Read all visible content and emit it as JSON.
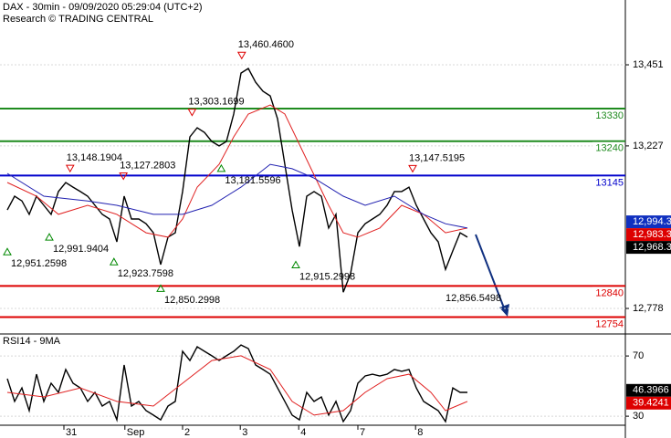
{
  "chart_data": [
    {
      "type": "line",
      "title": "DAX - 30min - 09/09/2020 05:29:04 (UTC+2)",
      "subtitle": "Research © TRADING CENTRAL",
      "xlim": [
        0,
        85.625
      ],
      "ylim": [
        12710,
        13630
      ],
      "yticks": [
        {
          "value": 12778,
          "label": "12,778"
        },
        {
          "value": 13227,
          "label": "13,227"
        },
        {
          "value": 13451,
          "label": "13,451"
        }
      ],
      "grid": true,
      "series": [
        {
          "color": "#000000",
          "x": [
            1,
            2,
            3,
            4,
            5,
            6,
            7,
            8,
            9,
            10,
            11,
            12,
            13,
            14,
            15,
            16,
            17,
            18,
            19,
            20,
            21,
            22,
            23,
            24,
            25,
            26,
            27,
            28,
            29,
            30,
            31,
            32,
            33,
            34,
            35,
            36,
            37,
            38,
            39,
            40,
            41,
            42,
            43,
            44,
            45,
            46,
            47,
            48,
            49,
            50,
            51,
            52,
            53,
            54,
            55,
            56,
            57,
            58,
            59,
            60,
            61,
            62,
            63,
            64
          ],
          "values": [
            13050,
            13088,
            13075,
            13038,
            13088,
            13063,
            13038,
            13101,
            13126,
            13113,
            13101,
            13088,
            13063,
            13038,
            13025,
            12962,
            13088,
            13025,
            13025,
            13012,
            12987,
            12899,
            12975,
            12987,
            13101,
            13252,
            13277,
            13264,
            13239,
            13227,
            13239,
            13315,
            13428,
            13441,
            13403,
            13378,
            13365,
            13302,
            13176,
            13050,
            12949,
            13088,
            13101,
            13088,
            13000,
            13038,
            12823,
            12874,
            12987,
            13012,
            13025,
            13038,
            13063,
            13101,
            13101,
            13113,
            13063,
            13025,
            12987,
            12962,
            12886,
            12937,
            12987,
            12975
          ]
        },
        {
          "color": "#e02020",
          "x": [
            1,
            5,
            8,
            12,
            16,
            20,
            23,
            25,
            27,
            30,
            32,
            34,
            37,
            39,
            42,
            45,
            47,
            49,
            52,
            55,
            58,
            61,
            64
          ],
          "values": [
            13126,
            13088,
            13038,
            13063,
            13038,
            12987,
            12975,
            13025,
            13113,
            13176,
            13252,
            13315,
            13340,
            13315,
            13189,
            13063,
            12987,
            12975,
            13000,
            13063,
            13038,
            12987,
            13000
          ]
        },
        {
          "color": "#2020b0",
          "x": [
            1,
            6,
            12,
            16,
            21,
            25,
            29,
            33,
            37,
            40,
            43,
            47,
            50,
            54,
            58,
            61,
            64
          ],
          "values": [
            13151,
            13088,
            13075,
            13063,
            13038,
            13038,
            13063,
            13113,
            13176,
            13164,
            13138,
            13088,
            13063,
            13088,
            13038,
            13012,
            13000
          ]
        }
      ],
      "levels": [
        {
          "value": 13330,
          "color": "#1f8b1f"
        },
        {
          "value": 13240,
          "color": "#1f8b1f"
        },
        {
          "value": 13145,
          "color": "#0000cc"
        },
        {
          "value": 12840,
          "color": "#dd0000"
        },
        {
          "value": 12754,
          "color": "#dd0000"
        }
      ],
      "pivots": [
        {
          "x": 9.6,
          "value": 13148.1904,
          "label": "13,148.1904",
          "kind": "high"
        },
        {
          "x": 16.9,
          "value": 13127.2803,
          "label": "13,127.2803",
          "kind": "high"
        },
        {
          "x": 26.3,
          "value": 13303.1699,
          "label": "13,303.1699",
          "kind": "high"
        },
        {
          "x": 33.1,
          "value": 13460.46,
          "label": "13,460.4600",
          "kind": "high"
        },
        {
          "x": 56.5,
          "value": 13147.5195,
          "label": "13,147.5195",
          "kind": "high"
        },
        {
          "x": 1,
          "value": 12951.2598,
          "label": "12,951.2598",
          "kind": "low"
        },
        {
          "x": 6.75,
          "value": 12991.9404,
          "label": "12,991.9404",
          "kind": "low"
        },
        {
          "x": 15.6,
          "value": 12923.7598,
          "label": "12,923.7598",
          "kind": "low"
        },
        {
          "x": 22,
          "value": 12850.2998,
          "label": "12,850.2998",
          "kind": "low"
        },
        {
          "x": 30.3,
          "value": 13181.5596,
          "label": "13,181.5596",
          "kind": "low"
        },
        {
          "x": 40.5,
          "value": 12915.2998,
          "label": "12,915.2998",
          "kind": "low"
        }
      ],
      "target": {
        "x": 61,
        "value": 12856.5498,
        "label": "12,856.5498"
      },
      "tags": [
        {
          "value": 12994.3,
          "label": "12,994.3",
          "color": "#1030c0"
        },
        {
          "value": 12983.3,
          "label": "12,983.3",
          "color": "#dd0000"
        },
        {
          "value": 12968.3,
          "label": "12,968.3",
          "color": "#000000"
        }
      ]
    },
    {
      "type": "line",
      "title": "RSI14 - 9MA",
      "xlim": [
        0,
        85.625
      ],
      "ylim": [
        24,
        84
      ],
      "yticks": [
        30,
        70
      ],
      "grid": true,
      "xticks": [
        {
          "value": 8.75,
          "label": "31"
        },
        {
          "value": 17.1,
          "label": "Sep"
        },
        {
          "value": 25,
          "label": "2"
        },
        {
          "value": 32.9,
          "label": "3"
        },
        {
          "value": 40.9,
          "label": "4"
        },
        {
          "value": 49,
          "label": "7"
        },
        {
          "value": 56.9,
          "label": "8"
        }
      ],
      "series": [
        {
          "color": "#000000",
          "x": [
            1,
            2,
            3,
            4,
            5,
            6,
            7,
            8,
            9,
            10,
            11,
            12,
            13,
            14,
            15,
            16,
            17,
            18,
            19,
            20,
            21,
            22,
            23,
            24,
            25,
            26,
            27,
            28,
            29,
            30,
            31,
            32,
            33,
            34,
            35,
            36,
            37,
            38,
            39,
            40,
            41,
            42,
            43,
            44,
            45,
            46,
            47,
            48,
            49,
            50,
            51,
            52,
            53,
            54,
            55,
            56,
            57,
            58,
            59,
            60,
            61,
            62,
            63,
            64
          ],
          "values": [
            54.9,
            39.8,
            48.8,
            33.7,
            57.9,
            39.8,
            51.9,
            45.8,
            61.0,
            51.9,
            48.8,
            39.8,
            45.8,
            36.7,
            39.8,
            27.6,
            64.0,
            36.7,
            39.8,
            33.7,
            30.7,
            27.6,
            36.7,
            39.8,
            73.1,
            67.0,
            76.1,
            73.1,
            70.1,
            67.0,
            70.1,
            73.1,
            77.3,
            74.9,
            64.0,
            61.0,
            57.9,
            48.8,
            39.8,
            30.7,
            27.6,
            45.8,
            39.8,
            42.8,
            30.7,
            39.8,
            26.4,
            33.7,
            51.9,
            56.7,
            57.9,
            56.7,
            57.9,
            61.0,
            59.8,
            61.0,
            48.8,
            39.8,
            36.7,
            33.7,
            26.4,
            48.8,
            45.8,
            45.8
          ]
        },
        {
          "color": "#e02020",
          "x": [
            1,
            6,
            11,
            16,
            21,
            25,
            29,
            33,
            37,
            40,
            43,
            47,
            50,
            53,
            56,
            59,
            61,
            64
          ],
          "values": [
            45.8,
            42.8,
            48.8,
            39.8,
            36.7,
            51.9,
            67.0,
            70.1,
            61.0,
            39.8,
            30.7,
            33.7,
            45.8,
            54.9,
            57.9,
            45.8,
            33.7,
            39.8
          ]
        }
      ],
      "tags": [
        {
          "value": 46.3966,
          "label": "46.3966",
          "color": "#000000"
        },
        {
          "value": 39.4241,
          "label": "39.4241",
          "color": "#dd0000"
        }
      ]
    }
  ]
}
